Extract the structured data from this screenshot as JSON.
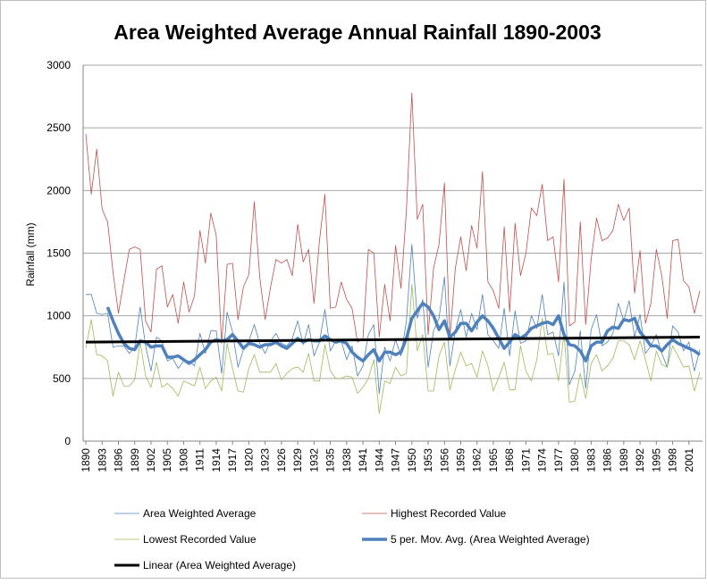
{
  "chart_data": {
    "type": "line",
    "title": "Area Weighted Average Annual Rainfall 1890-2003",
    "y_label": "Rainfall (mm)",
    "x": [
      1890,
      1891,
      1892,
      1893,
      1894,
      1895,
      1896,
      1897,
      1898,
      1899,
      1900,
      1901,
      1902,
      1903,
      1904,
      1905,
      1906,
      1907,
      1908,
      1909,
      1910,
      1911,
      1912,
      1913,
      1914,
      1915,
      1916,
      1917,
      1918,
      1919,
      1920,
      1921,
      1922,
      1923,
      1924,
      1925,
      1926,
      1927,
      1928,
      1929,
      1930,
      1931,
      1932,
      1933,
      1934,
      1935,
      1936,
      1937,
      1938,
      1939,
      1940,
      1941,
      1942,
      1943,
      1944,
      1945,
      1946,
      1947,
      1948,
      1949,
      1950,
      1951,
      1952,
      1953,
      1954,
      1955,
      1956,
      1957,
      1958,
      1959,
      1960,
      1961,
      1962,
      1963,
      1964,
      1965,
      1966,
      1967,
      1968,
      1969,
      1970,
      1971,
      1972,
      1973,
      1974,
      1975,
      1976,
      1977,
      1978,
      1979,
      1980,
      1981,
      1982,
      1983,
      1984,
      1985,
      1986,
      1987,
      1988,
      1989,
      1990,
      1991,
      1992,
      1993,
      1994,
      1995,
      1996,
      1997,
      1998,
      1999,
      2000,
      2001,
      2002,
      2003
    ],
    "xlim": [
      1889.5,
      2003.5
    ],
    "xticks": [
      1890,
      1893,
      1896,
      1899,
      1902,
      1905,
      1908,
      1911,
      1914,
      1917,
      1920,
      1923,
      1926,
      1929,
      1932,
      1935,
      1938,
      1941,
      1944,
      1947,
      1950,
      1953,
      1956,
      1959,
      1962,
      1965,
      1968,
      1971,
      1974,
      1977,
      1980,
      1983,
      1986,
      1989,
      1992,
      1995,
      1998,
      2001
    ],
    "ylim": [
      0,
      3000
    ],
    "yticks": [
      0,
      500,
      1000,
      1500,
      2000,
      2500,
      3000
    ],
    "grid": true,
    "series": [
      {
        "name": "Area Weighted Average",
        "color": "#4f81bd",
        "linewidth": 0.8,
        "values": [
          1170,
          1170,
          1020,
          1010,
          1020,
          750,
          760,
          760,
          700,
          750,
          1070,
          760,
          560,
          830,
          800,
          640,
          660,
          580,
          640,
          640,
          600,
          860,
          700,
          880,
          880,
          540,
          1030,
          870,
          590,
          730,
          800,
          930,
          780,
          700,
          800,
          860,
          780,
          760,
          820,
          960,
          770,
          930,
          680,
          790,
          1050,
          720,
          800,
          800,
          650,
          760,
          520,
          600,
          850,
          930,
          380,
          750,
          640,
          810,
          680,
          960,
          1570,
          980,
          1130,
          590,
          880,
          980,
          1310,
          600,
          880,
          1050,
          830,
          1020,
          890,
          1170,
          850,
          800,
          740,
          1060,
          680,
          1040,
          780,
          800,
          1000,
          900,
          1170,
          850,
          870,
          680,
          1270,
          450,
          560,
          880,
          420,
          890,
          1010,
          760,
          790,
          860,
          1100,
          960,
          1120,
          830,
          1010,
          700,
          760,
          850,
          700,
          590,
          920,
          870,
          720,
          790,
          560,
          730
        ]
      },
      {
        "name": "Highest Recorded Value",
        "color": "#c0504d",
        "linewidth": 0.8,
        "values": [
          2450,
          1970,
          2330,
          1850,
          1750,
          1350,
          1020,
          1280,
          1530,
          1550,
          1530,
          960,
          870,
          1370,
          1400,
          1070,
          1170,
          940,
          1270,
          1030,
          1160,
          1680,
          1420,
          1820,
          1640,
          780,
          1410,
          1420,
          970,
          1230,
          1330,
          1910,
          1310,
          970,
          1230,
          1450,
          1420,
          1450,
          1320,
          1730,
          1430,
          1530,
          1100,
          1600,
          1970,
          1060,
          1070,
          1270,
          1130,
          1060,
          790,
          820,
          1530,
          1500,
          830,
          1250,
          960,
          1560,
          1220,
          1840,
          2780,
          1770,
          1890,
          850,
          1380,
          1570,
          2060,
          820,
          1380,
          1630,
          1360,
          1720,
          1540,
          2150,
          1270,
          1200,
          1060,
          1710,
          1030,
          1740,
          1320,
          1500,
          1860,
          1800,
          2050,
          1600,
          1630,
          1270,
          2090,
          920,
          950,
          1750,
          930,
          1450,
          1780,
          1600,
          1620,
          1680,
          1890,
          1760,
          1860,
          1180,
          1520,
          940,
          1100,
          1530,
          1320,
          980,
          1600,
          1610,
          1280,
          1230,
          1020,
          1200
        ]
      },
      {
        "name": "Lowest Recorded Value",
        "color": "#9bbb59",
        "linewidth": 0.8,
        "values": [
          740,
          970,
          690,
          680,
          640,
          360,
          550,
          440,
          440,
          490,
          790,
          520,
          430,
          630,
          430,
          460,
          420,
          360,
          480,
          460,
          440,
          590,
          420,
          480,
          510,
          400,
          780,
          580,
          400,
          390,
          580,
          690,
          550,
          550,
          550,
          620,
          490,
          540,
          580,
          590,
          550,
          700,
          480,
          480,
          770,
          560,
          500,
          500,
          520,
          510,
          380,
          430,
          500,
          650,
          220,
          480,
          460,
          590,
          520,
          540,
          1250,
          720,
          850,
          400,
          400,
          680,
          790,
          410,
          570,
          710,
          600,
          620,
          510,
          720,
          600,
          400,
          510,
          630,
          410,
          410,
          760,
          560,
          480,
          650,
          980,
          690,
          700,
          480,
          860,
          310,
          320,
          540,
          340,
          620,
          690,
          560,
          600,
          660,
          800,
          800,
          770,
          650,
          800,
          650,
          480,
          720,
          610,
          590,
          760,
          680,
          590,
          600,
          400,
          550
        ]
      },
      {
        "name": "5 per. Mov. Avg. (Area Weighted Average)",
        "color": "#4f81bd",
        "linewidth": 3.5,
        "values": [
          null,
          null,
          null,
          null,
          1070,
          960,
          860,
          780,
          740,
          730,
          800,
          790,
          750,
          760,
          760,
          670,
          670,
          680,
          650,
          620,
          650,
          690,
          730,
          790,
          810,
          800,
          810,
          850,
          800,
          740,
          780,
          770,
          750,
          770,
          770,
          790,
          760,
          740,
          780,
          820,
          790,
          810,
          800,
          800,
          840,
          810,
          790,
          800,
          780,
          710,
          670,
          640,
          690,
          730,
          640,
          710,
          710,
          690,
          710,
          820,
          980,
          1040,
          1100,
          1070,
          1000,
          890,
          960,
          830,
          870,
          940,
          940,
          880,
          950,
          1000,
          960,
          900,
          820,
          740,
          790,
          850,
          820,
          850,
          900,
          920,
          940,
          950,
          930,
          1000,
          850,
          770,
          760,
          720,
          640,
          760,
          790,
          790,
          880,
          910,
          900,
          970,
          960,
          980,
          870,
          820,
          760,
          760,
          720,
          770,
          810,
          780,
          760,
          740,
          720,
          690
        ]
      },
      {
        "name": "Linear (Area Weighted Average)",
        "color": "#000000",
        "linewidth": 3,
        "x": [
          1890,
          2003
        ],
        "values": [
          790,
          830
        ]
      }
    ]
  }
}
